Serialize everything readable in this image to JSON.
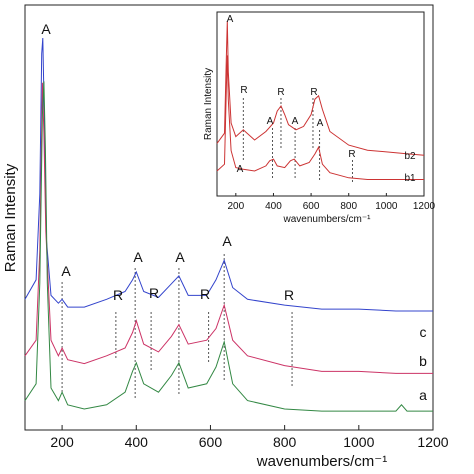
{
  "chart_data": [
    {
      "type": "line",
      "xlabel": "wavenumbers/cm⁻¹",
      "ylabel": "Raman Intensity",
      "xlim": [
        100,
        1200
      ],
      "xticks": [
        200,
        400,
        600,
        800,
        1000,
        1200
      ],
      "series": [
        {
          "name": "c",
          "color": "#3344cc",
          "x": [
            100,
            130,
            140,
            145,
            148,
            152,
            158,
            170,
            190,
            200,
            215,
            260,
            320,
            370,
            390,
            400,
            420,
            460,
            495,
            515,
            540,
            590,
            615,
            637,
            660,
            700,
            800,
            900,
            1000,
            1100,
            1200
          ],
          "y": [
            0.33,
            0.38,
            0.6,
            0.96,
            1.0,
            0.8,
            0.48,
            0.34,
            0.32,
            0.33,
            0.31,
            0.31,
            0.33,
            0.35,
            0.38,
            0.4,
            0.35,
            0.335,
            0.37,
            0.39,
            0.34,
            0.34,
            0.38,
            0.43,
            0.36,
            0.33,
            0.315,
            0.305,
            0.305,
            0.3,
            0.3
          ]
        },
        {
          "name": "b",
          "color": "#cc3366",
          "x": [
            100,
            130,
            140,
            147,
            151,
            156,
            170,
            190,
            200,
            215,
            260,
            320,
            370,
            390,
            400,
            420,
            460,
            495,
            515,
            540,
            590,
            615,
            637,
            660,
            700,
            800,
            900,
            1000,
            1100,
            1200
          ],
          "y": [
            0.18,
            0.22,
            0.45,
            0.88,
            0.75,
            0.5,
            0.22,
            0.18,
            0.2,
            0.17,
            0.16,
            0.18,
            0.2,
            0.24,
            0.27,
            0.21,
            0.19,
            0.23,
            0.26,
            0.21,
            0.22,
            0.25,
            0.31,
            0.22,
            0.18,
            0.155,
            0.14,
            0.14,
            0.135,
            0.135
          ]
        },
        {
          "name": "a",
          "color": "#338844",
          "x": [
            100,
            130,
            140,
            147,
            151,
            155,
            160,
            170,
            190,
            200,
            215,
            260,
            320,
            370,
            390,
            400,
            420,
            460,
            495,
            515,
            540,
            590,
            615,
            637,
            660,
            700,
            800,
            900,
            1000,
            1100,
            1115,
            1130,
            1200
          ],
          "y": [
            0.02,
            0.06,
            0.3,
            0.7,
            0.78,
            0.62,
            0.3,
            0.05,
            0.02,
            0.04,
            0.01,
            0.0,
            0.01,
            0.04,
            0.09,
            0.11,
            0.06,
            0.04,
            0.08,
            0.11,
            0.05,
            0.06,
            0.1,
            0.16,
            0.06,
            0.02,
            0.0,
            -0.005,
            -0.005,
            -0.005,
            0.01,
            -0.005,
            -0.005
          ]
        }
      ],
      "annotations": [
        "A",
        "A",
        "R",
        "A",
        "R",
        "A",
        "R",
        "A",
        "R",
        "c",
        "b",
        "a"
      ]
    },
    {
      "type": "line",
      "xlabel": "wavenumbers/cm⁻¹",
      "ylabel": "Raman Intensity",
      "xlim": [
        100,
        1200
      ],
      "xticks": [
        200,
        400,
        600,
        800,
        1000,
        1200
      ],
      "series": [
        {
          "name": "b2",
          "color": "#cc3333",
          "x": [
            100,
            140,
            150,
            155,
            160,
            175,
            200,
            240,
            260,
            300,
            360,
            400,
            420,
            440,
            460,
            480,
            520,
            560,
            600,
            620,
            640,
            660,
            700,
            800,
            900,
            1000,
            1100,
            1200
          ],
          "y": [
            0.28,
            0.34,
            0.8,
            1.0,
            0.7,
            0.4,
            0.32,
            0.36,
            0.34,
            0.3,
            0.35,
            0.4,
            0.47,
            0.5,
            0.45,
            0.39,
            0.36,
            0.38,
            0.45,
            0.54,
            0.56,
            0.48,
            0.35,
            0.27,
            0.24,
            0.23,
            0.22,
            0.21
          ]
        },
        {
          "name": "b1",
          "color": "#cc3333",
          "x": [
            100,
            140,
            150,
            155,
            160,
            175,
            200,
            240,
            300,
            360,
            380,
            400,
            420,
            460,
            490,
            510,
            540,
            590,
            620,
            640,
            660,
            700,
            800,
            900,
            1000,
            1100,
            1200
          ],
          "y": [
            0.1,
            0.14,
            0.6,
            0.78,
            0.52,
            0.22,
            0.12,
            0.11,
            0.1,
            0.13,
            0.16,
            0.17,
            0.13,
            0.12,
            0.16,
            0.17,
            0.13,
            0.15,
            0.2,
            0.24,
            0.14,
            0.09,
            0.06,
            0.05,
            0.05,
            0.05,
            0.05
          ]
        }
      ],
      "annotations": [
        "A",
        "R",
        "A",
        "R",
        "A",
        "R",
        "A",
        "R",
        "A",
        "A",
        "b2",
        "b1"
      ]
    }
  ]
}
